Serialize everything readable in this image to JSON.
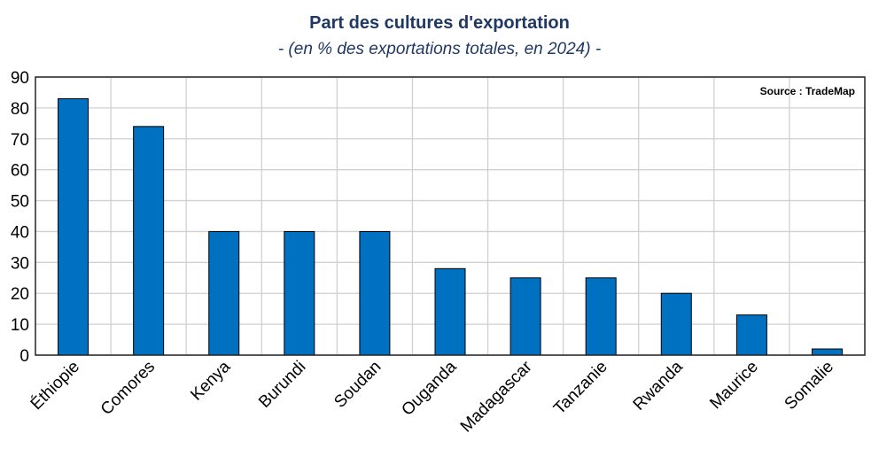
{
  "chart_data": {
    "type": "bar",
    "title": "Part des cultures d'exportation",
    "subtitle": "- (en % des exportations totales, en 2024) -",
    "source": "Source : TradeMap",
    "categories": [
      "Éthiopie",
      "Comores",
      "Kenya",
      "Burundi",
      "Soudan",
      "Ouganda",
      "Madagascar",
      "Tanzanie",
      "Rwanda",
      "Maurice",
      "Somalie"
    ],
    "values": [
      83,
      74,
      40,
      40,
      40,
      28,
      25,
      25,
      20,
      13,
      2
    ],
    "xlabel": "",
    "ylabel": "",
    "ylim": [
      0,
      90
    ],
    "yticks": [
      0,
      10,
      20,
      30,
      40,
      50,
      60,
      70,
      80,
      90
    ],
    "grid": true,
    "bar_color": "#0070c0",
    "title_color": "#1f3864"
  }
}
